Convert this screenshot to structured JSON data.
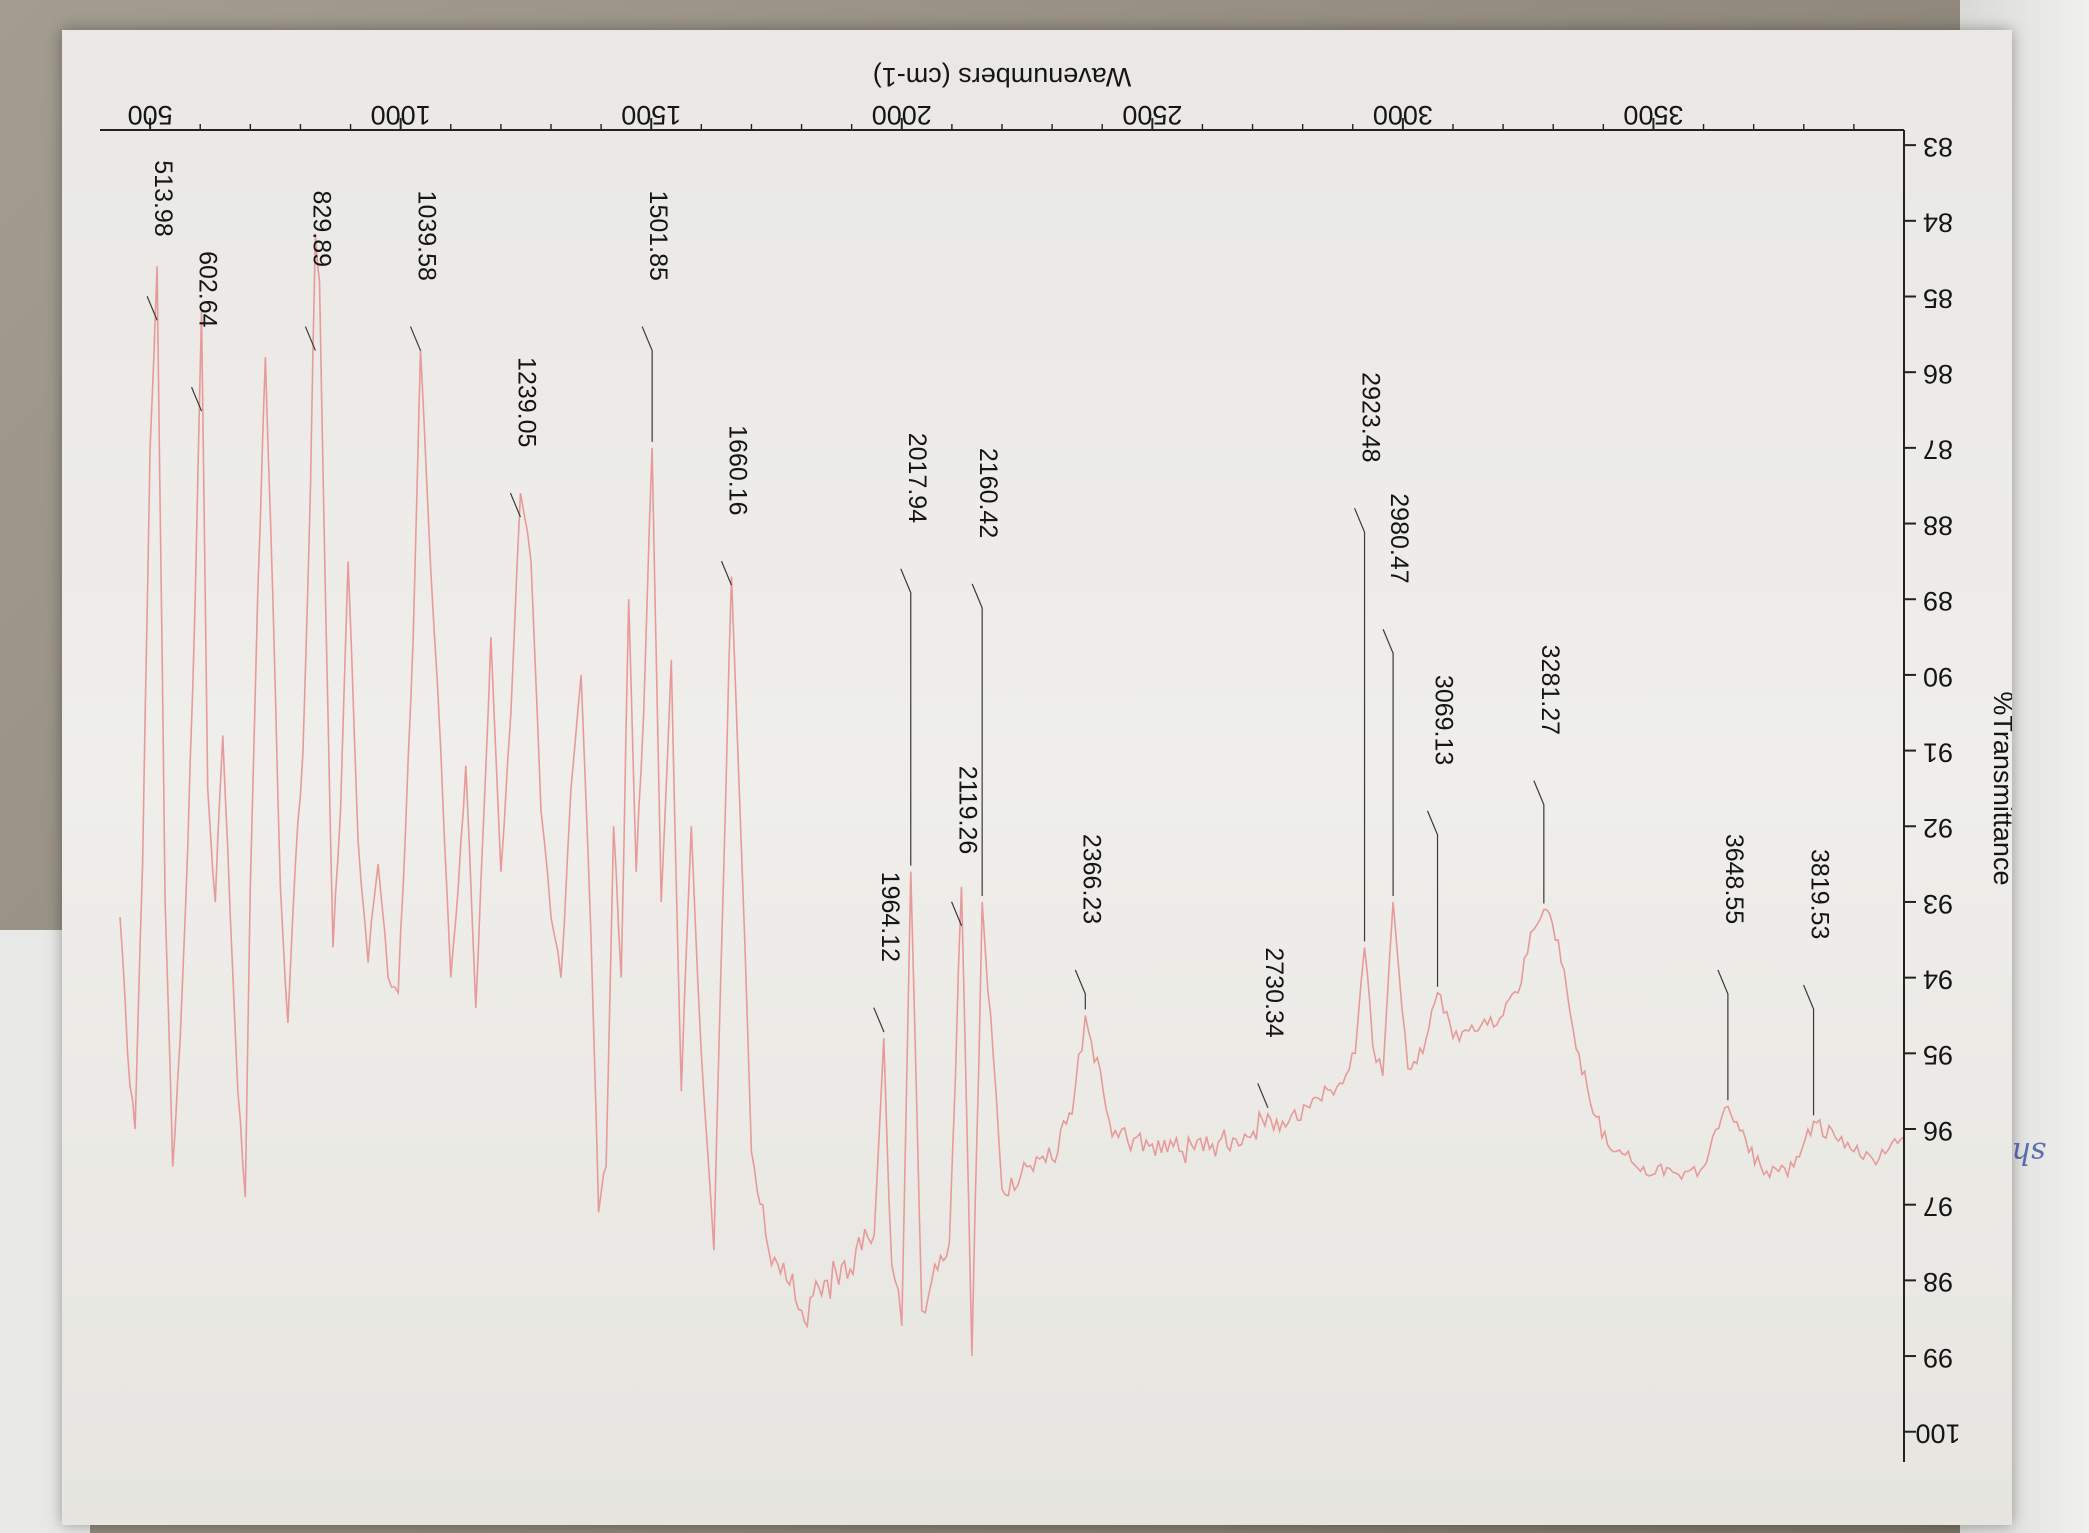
{
  "colors": {
    "spectrum": "#e89a9a",
    "axis": "#222222",
    "paper": "#ecebe7",
    "ink": "#151515"
  },
  "page": {
    "margin_scribble": "shlub"
  },
  "chart_data": {
    "type": "line",
    "title": "",
    "xlabel": "Wavenumbers (cm-1)",
    "ylabel": "%Transmittance",
    "xlim": [
      400,
      4000
    ],
    "ylim": [
      82.8,
      100.4
    ],
    "x_direction": "decreasing",
    "grid": false,
    "x_ticks": [
      3500,
      3000,
      2500,
      2000,
      1500,
      1000,
      500
    ],
    "y_ticks": [
      83,
      84,
      85,
      86,
      87,
      88,
      89,
      90,
      91,
      92,
      93,
      94,
      95,
      96,
      97,
      98,
      99,
      100
    ],
    "series": [
      {
        "points": [
          [
            4000,
            96.1
          ],
          [
            3950,
            96.4
          ],
          [
            3900,
            96.3
          ],
          [
            3819.53,
            95.9
          ],
          [
            3780,
            96.5
          ],
          [
            3720,
            96.6
          ],
          [
            3648.55,
            95.7
          ],
          [
            3600,
            96.5
          ],
          [
            3550,
            96.6
          ],
          [
            3480,
            96.5
          ],
          [
            3420,
            96.3
          ],
          [
            3380,
            95.8
          ],
          [
            3340,
            94.7
          ],
          [
            3310,
            93.5
          ],
          [
            3281.27,
            93.1
          ],
          [
            3255,
            93.4
          ],
          [
            3230,
            94.2
          ],
          [
            3200,
            94.5
          ],
          [
            3150,
            94.7
          ],
          [
            3100,
            94.8
          ],
          [
            3069.13,
            94.2
          ],
          [
            3040,
            95.0
          ],
          [
            3010,
            95.2
          ],
          [
            2980.47,
            93.0
          ],
          [
            2960,
            95.3
          ],
          [
            2940,
            94.9
          ],
          [
            2923.48,
            93.6
          ],
          [
            2905,
            95.0
          ],
          [
            2880,
            95.4
          ],
          [
            2820,
            95.6
          ],
          [
            2760,
            95.9
          ],
          [
            2730.34,
            95.8
          ],
          [
            2690,
            96.1
          ],
          [
            2620,
            96.2
          ],
          [
            2560,
            96.3
          ],
          [
            2500,
            96.2
          ],
          [
            2420,
            96.1
          ],
          [
            2366.23,
            94.5
          ],
          [
            2340,
            95.8
          ],
          [
            2300,
            96.4
          ],
          [
            2250,
            96.5
          ],
          [
            2200,
            96.8
          ],
          [
            2160.42,
            93.0
          ],
          [
            2140,
            99.0
          ],
          [
            2119.26,
            92.8
          ],
          [
            2095,
            97.5
          ],
          [
            2060,
            98.0
          ],
          [
            2040,
            98.4
          ],
          [
            2017.94,
            92.6
          ],
          [
            2000,
            98.6
          ],
          [
            1980,
            97.8
          ],
          [
            1964.12,
            94.8
          ],
          [
            1945,
            97.4
          ],
          [
            1920,
            97.6
          ],
          [
            1880,
            97.8
          ],
          [
            1840,
            98.2
          ],
          [
            1800,
            98.4
          ],
          [
            1770,
            98.0
          ],
          [
            1740,
            97.8
          ],
          [
            1700,
            96.3
          ],
          [
            1680,
            92.3
          ],
          [
            1660.16,
            88.7
          ],
          [
            1645,
            92.5
          ],
          [
            1625,
            97.6
          ],
          [
            1600,
            95.0
          ],
          [
            1580,
            92.0
          ],
          [
            1560,
            95.5
          ],
          [
            1540,
            89.8
          ],
          [
            1520,
            93.0
          ],
          [
            1501.85,
            87.0
          ],
          [
            1485,
            90.5
          ],
          [
            1470,
            92.6
          ],
          [
            1455,
            89.0
          ],
          [
            1440,
            94.0
          ],
          [
            1425,
            92.0
          ],
          [
            1410,
            96.5
          ],
          [
            1395,
            97.1
          ],
          [
            1380,
            93.5
          ],
          [
            1360,
            90.0
          ],
          [
            1340,
            91.5
          ],
          [
            1320,
            94.0
          ],
          [
            1300,
            93.2
          ],
          [
            1280,
            91.8
          ],
          [
            1260,
            88.5
          ],
          [
            1239.05,
            87.6
          ],
          [
            1220,
            90.5
          ],
          [
            1200,
            92.6
          ],
          [
            1180,
            89.5
          ],
          [
            1165,
            92.0
          ],
          [
            1150,
            94.4
          ],
          [
            1130,
            91.2
          ],
          [
            1115,
            92.8
          ],
          [
            1100,
            94.0
          ],
          [
            1080,
            91.0
          ],
          [
            1060,
            88.6
          ],
          [
            1039.58,
            85.7
          ],
          [
            1025,
            89.5
          ],
          [
            1010,
            92.0
          ],
          [
            995,
            94.2
          ],
          [
            975,
            94.0
          ],
          [
            955,
            92.5
          ],
          [
            935,
            93.8
          ],
          [
            915,
            92.2
          ],
          [
            895,
            88.5
          ],
          [
            880,
            91.8
          ],
          [
            865,
            93.6
          ],
          [
            850,
            89.0
          ],
          [
            838,
            84.8
          ],
          [
            829.89,
            84.2
          ],
          [
            820,
            87.5
          ],
          [
            805,
            91.0
          ],
          [
            790,
            92.5
          ],
          [
            775,
            94.6
          ],
          [
            760,
            92.8
          ],
          [
            745,
            89.0
          ],
          [
            730,
            85.8
          ],
          [
            715,
            88.9
          ],
          [
            700,
            92.8
          ],
          [
            690,
            96.9
          ],
          [
            675,
            95.5
          ],
          [
            660,
            93.2
          ],
          [
            645,
            90.8
          ],
          [
            630,
            93.0
          ],
          [
            615,
            91.5
          ],
          [
            602.64,
            85.2
          ],
          [
            590,
            89.0
          ],
          [
            575,
            92.3
          ],
          [
            560,
            94.8
          ],
          [
            545,
            96.5
          ],
          [
            530,
            93.0
          ],
          [
            513.98,
            84.6
          ],
          [
            500,
            87.0
          ],
          [
            485,
            92.5
          ],
          [
            470,
            96.0
          ],
          [
            455,
            95.0
          ],
          [
            440,
            93.2
          ]
        ]
      }
    ],
    "peak_labels": [
      {
        "x": 3819.53,
        "text": "3819.53"
      },
      {
        "x": 3648.55,
        "text": "3648.55"
      },
      {
        "x": 3281.27,
        "text": "3281.27"
      },
      {
        "x": 3069.13,
        "text": "3069.13"
      },
      {
        "x": 2980.47,
        "text": "2980.47"
      },
      {
        "x": 2923.48,
        "text": "2923.48"
      },
      {
        "x": 2730.34,
        "text": "2730.34"
      },
      {
        "x": 2366.23,
        "text": "2366.23"
      },
      {
        "x": 2160.42,
        "text": "2160.42"
      },
      {
        "x": 2119.26,
        "text": "2119.26"
      },
      {
        "x": 2017.94,
        "text": "2017.94"
      },
      {
        "x": 1964.12,
        "text": "1964.12"
      },
      {
        "x": 1660.16,
        "text": "1660.16"
      },
      {
        "x": 1501.85,
        "text": "1501.85"
      },
      {
        "x": 1239.05,
        "text": "1239.05"
      },
      {
        "x": 1039.58,
        "text": "1039.58"
      },
      {
        "x": 829.89,
        "text": "829.89"
      },
      {
        "x": 602.64,
        "text": "602.64"
      },
      {
        "x": 513.98,
        "text": "513.98"
      }
    ]
  }
}
